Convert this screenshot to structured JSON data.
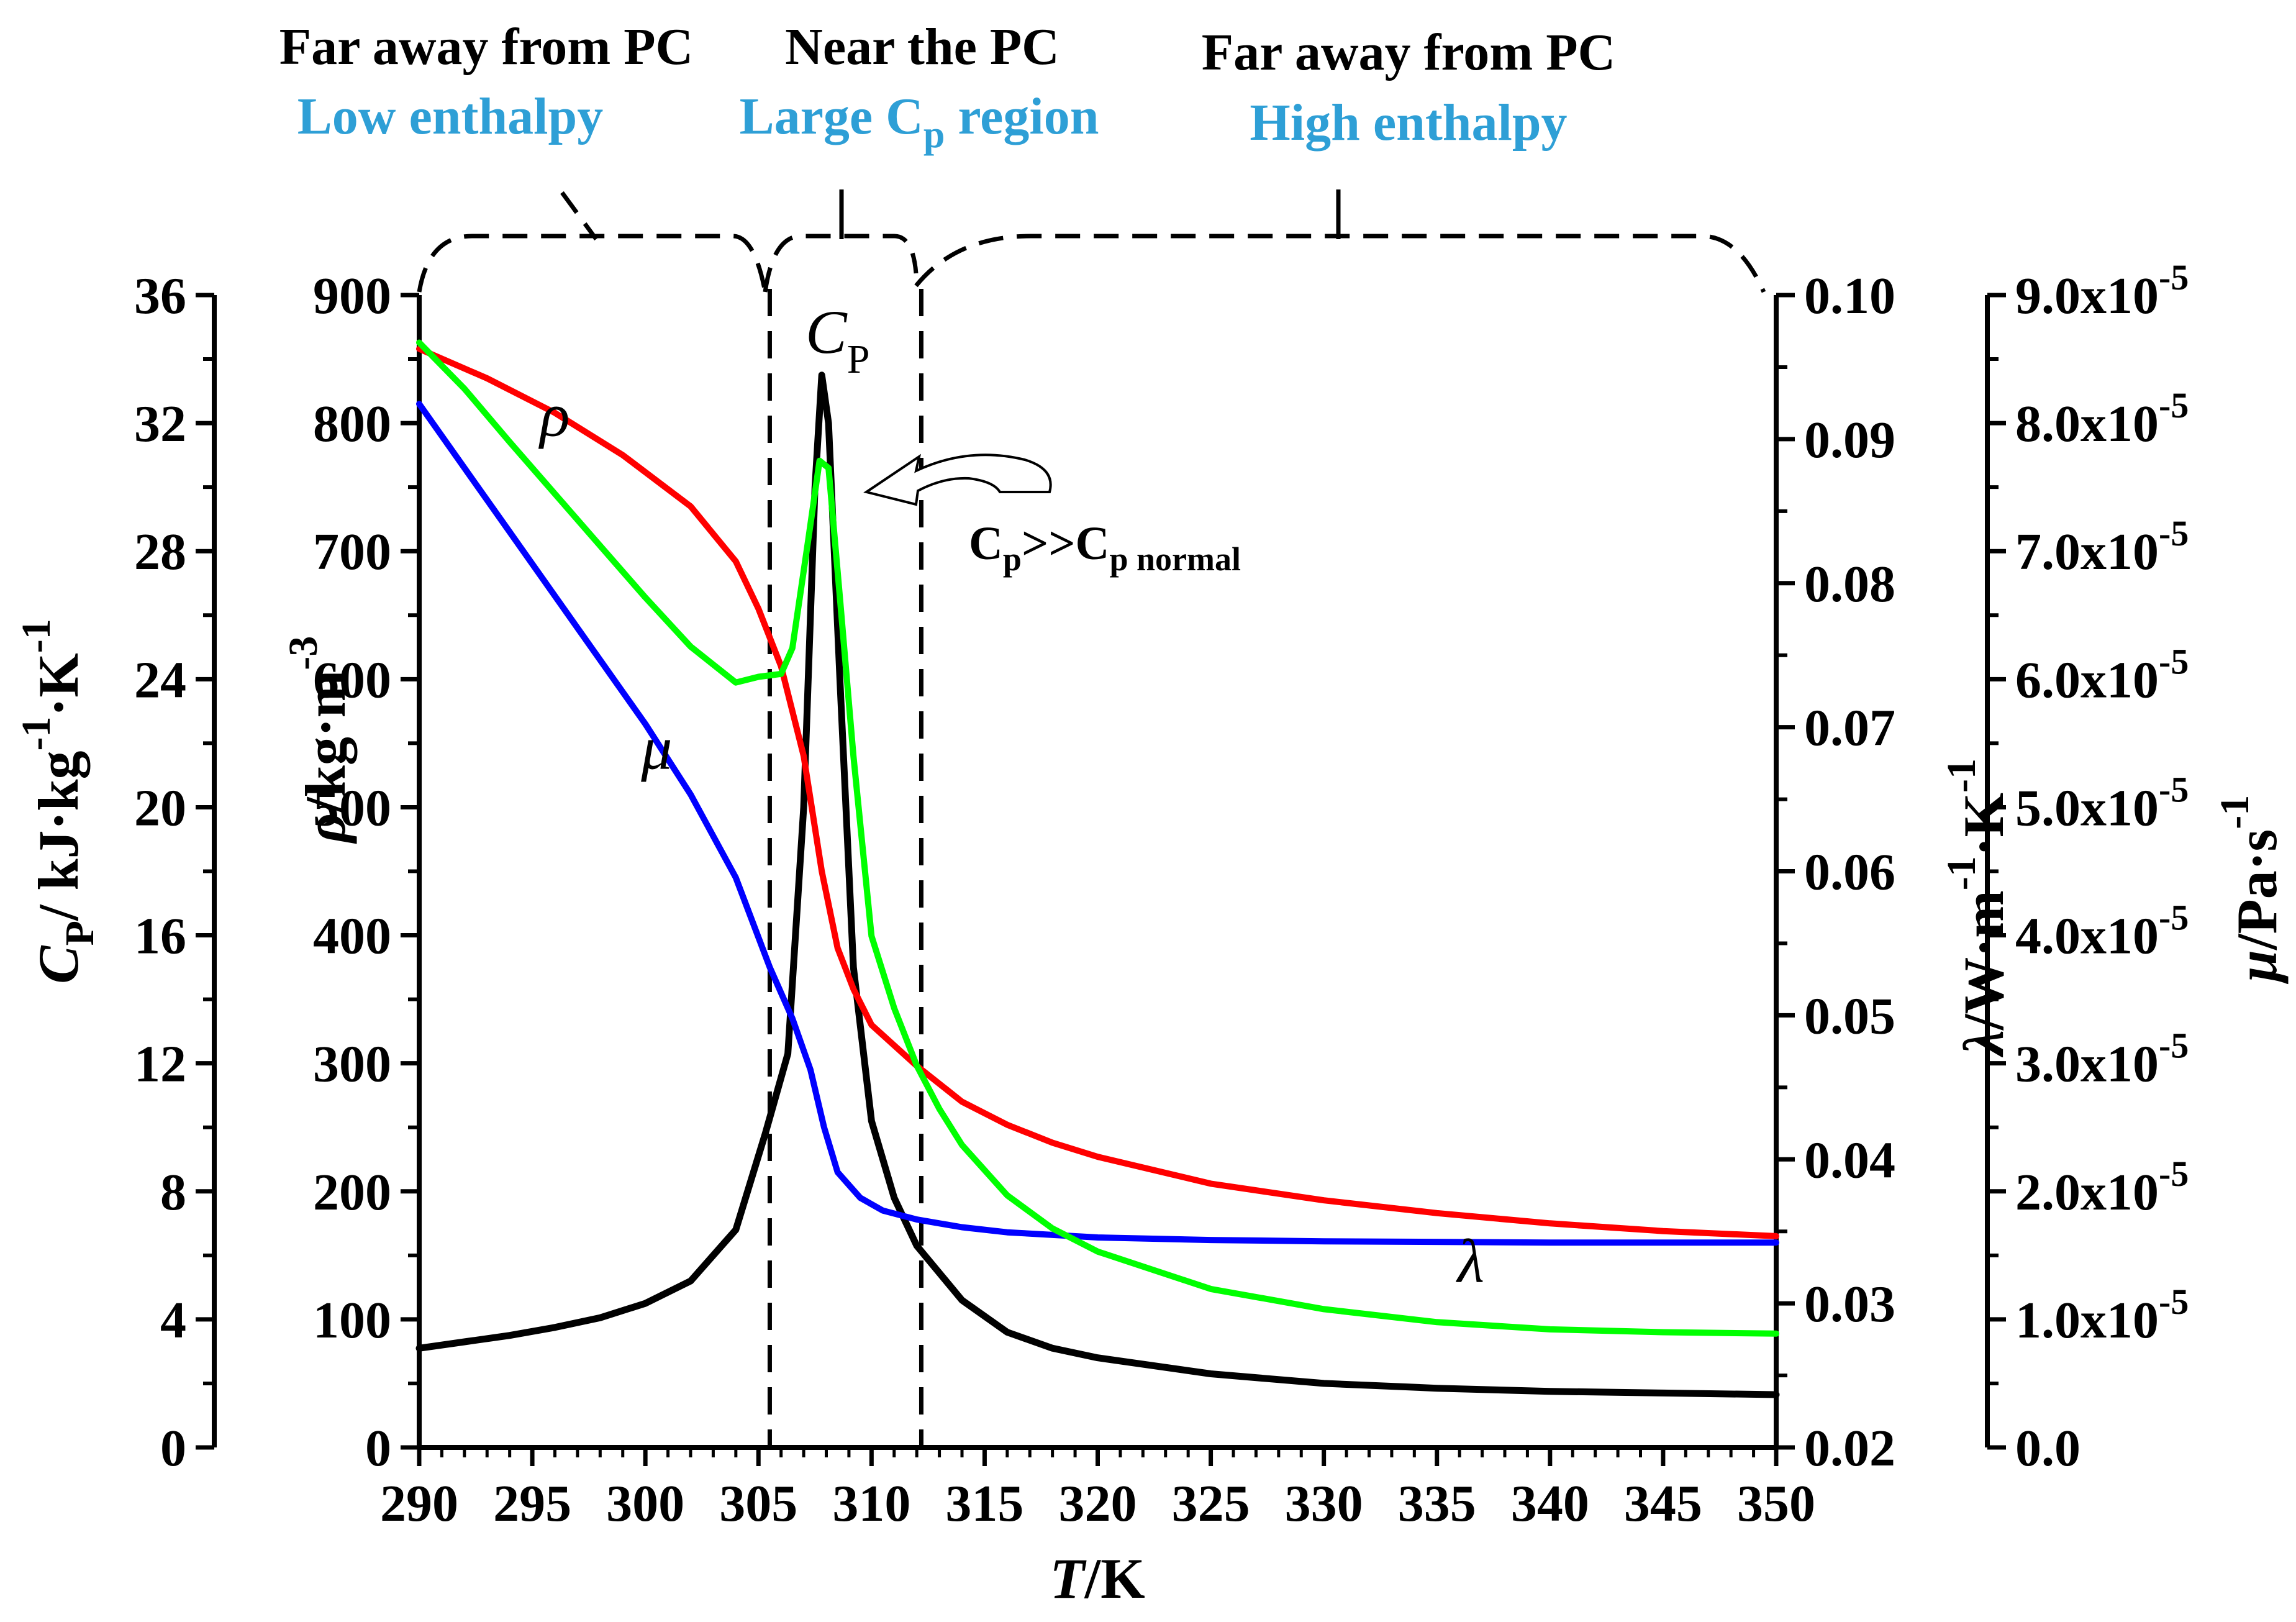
{
  "chart_data": {
    "type": "line",
    "xlabel": "T/K",
    "x_ticks": [
      290,
      295,
      300,
      305,
      310,
      315,
      320,
      325,
      330,
      335,
      340,
      345,
      350
    ],
    "xlim": [
      290,
      350
    ],
    "axes": {
      "cp": {
        "label": "C_P/ kJ·kg^-1·K^-1",
        "ylim": [
          0,
          36
        ],
        "ticks": [
          "0",
          "4",
          "8",
          "12",
          "16",
          "20",
          "24",
          "28",
          "32",
          "36"
        ]
      },
      "rho": {
        "label": "ρ/kg·m^-3",
        "ylim": [
          0,
          900
        ],
        "ticks": [
          "0",
          "100",
          "200",
          "300",
          "400",
          "500",
          "600",
          "700",
          "800",
          "900"
        ]
      },
      "lambda": {
        "label": "λ/W·m^-1·K^-1",
        "ylim": [
          0.02,
          0.1
        ],
        "ticks": [
          "0.02",
          "0.03",
          "0.04",
          "0.05",
          "0.06",
          "0.07",
          "0.08",
          "0.09",
          "0.10"
        ]
      },
      "mu": {
        "label": "μ/Pa·s^-1",
        "ylim": [
          0,
          9e-05
        ],
        "ticks": [
          "0.0",
          "1.0x10^-5",
          "2.0x10^-5",
          "3.0x10^-5",
          "4.0x10^-5",
          "5.0x10^-5",
          "6.0x10^-5",
          "7.0x10^-5",
          "8.0x10^-5",
          "9.0x10^-5"
        ]
      }
    },
    "series": [
      {
        "name": "C_P",
        "axis": "cp",
        "color": "#000000",
        "points": [
          [
            290,
            3.1
          ],
          [
            292,
            3.3
          ],
          [
            294,
            3.5
          ],
          [
            296,
            3.75
          ],
          [
            298,
            4.05
          ],
          [
            300,
            4.5
          ],
          [
            302,
            5.2
          ],
          [
            304,
            6.8
          ],
          [
            305.3,
            9.8
          ],
          [
            306.3,
            12.3
          ],
          [
            307,
            20
          ],
          [
            307.5,
            30
          ],
          [
            307.8,
            33.5
          ],
          [
            308.1,
            32
          ],
          [
            308.6,
            24
          ],
          [
            309.2,
            15
          ],
          [
            310,
            10.2
          ],
          [
            311,
            7.8
          ],
          [
            312,
            6.3
          ],
          [
            314,
            4.6
          ],
          [
            316,
            3.6
          ],
          [
            318,
            3.1
          ],
          [
            320,
            2.8
          ],
          [
            325,
            2.3
          ],
          [
            330,
            2.0
          ],
          [
            335,
            1.85
          ],
          [
            340,
            1.75
          ],
          [
            345,
            1.7
          ],
          [
            350,
            1.65
          ]
        ]
      },
      {
        "name": "ρ",
        "axis": "rho",
        "color": "#ff0000",
        "points": [
          [
            290,
            858
          ],
          [
            293,
            835
          ],
          [
            296,
            808
          ],
          [
            299,
            775
          ],
          [
            302,
            735
          ],
          [
            304,
            692
          ],
          [
            305,
            655
          ],
          [
            306,
            610
          ],
          [
            307,
            540
          ],
          [
            307.8,
            450
          ],
          [
            308.5,
            390
          ],
          [
            309.2,
            358
          ],
          [
            310,
            330
          ],
          [
            312,
            298
          ],
          [
            314,
            270
          ],
          [
            316,
            252
          ],
          [
            318,
            238
          ],
          [
            320,
            227
          ],
          [
            325,
            206
          ],
          [
            330,
            193
          ],
          [
            335,
            183
          ],
          [
            340,
            175
          ],
          [
            345,
            169
          ],
          [
            350,
            165
          ]
        ]
      },
      {
        "name": "μ",
        "axis": "mu",
        "color": "#0000ff",
        "points": [
          [
            290,
            8.15e-05
          ],
          [
            292,
            7.65e-05
          ],
          [
            294,
            7.15e-05
          ],
          [
            296,
            6.65e-05
          ],
          [
            298,
            6.15e-05
          ],
          [
            300,
            5.65e-05
          ],
          [
            302,
            5.1e-05
          ],
          [
            304,
            4.45e-05
          ],
          [
            305.5,
            3.75e-05
          ],
          [
            306.5,
            3.35e-05
          ],
          [
            307.3,
            2.95e-05
          ],
          [
            307.9,
            2.5e-05
          ],
          [
            308.5,
            2.15e-05
          ],
          [
            309.5,
            1.95e-05
          ],
          [
            310.5,
            1.85e-05
          ],
          [
            312,
            1.78e-05
          ],
          [
            314,
            1.72e-05
          ],
          [
            316,
            1.68e-05
          ],
          [
            320,
            1.64e-05
          ],
          [
            325,
            1.62e-05
          ],
          [
            330,
            1.61e-05
          ],
          [
            340,
            1.6e-05
          ],
          [
            350,
            1.6e-05
          ]
        ]
      },
      {
        "name": "λ",
        "axis": "lambda",
        "color": "#00ff00",
        "points": [
          [
            290,
            0.0967
          ],
          [
            292,
            0.0935
          ],
          [
            294,
            0.0898
          ],
          [
            296,
            0.0862
          ],
          [
            298,
            0.0826
          ],
          [
            300,
            0.079
          ],
          [
            302,
            0.0756
          ],
          [
            304,
            0.0731
          ],
          [
            305,
            0.0735
          ],
          [
            306,
            0.0737
          ],
          [
            306.5,
            0.0755
          ],
          [
            307.2,
            0.083
          ],
          [
            307.7,
            0.0885
          ],
          [
            308.1,
            0.088
          ],
          [
            308.6,
            0.079
          ],
          [
            309.2,
            0.068
          ],
          [
            310,
            0.0555
          ],
          [
            311,
            0.0505
          ],
          [
            312,
            0.0465
          ],
          [
            313,
            0.0435
          ],
          [
            314,
            0.041
          ],
          [
            316,
            0.0375
          ],
          [
            318,
            0.0352
          ],
          [
            320,
            0.0336
          ],
          [
            325,
            0.031
          ],
          [
            330,
            0.0296
          ],
          [
            335,
            0.0287
          ],
          [
            340,
            0.0282
          ],
          [
            345,
            0.028
          ],
          [
            350,
            0.0279
          ]
        ]
      }
    ],
    "curve_labels": [
      {
        "text": "ρ",
        "x": 296,
        "y": 790,
        "axis": "rho"
      },
      {
        "text": "μ",
        "x": 300.5,
        "y": 5.3e-05,
        "axis": "mu"
      },
      {
        "text": "λ",
        "x": 336.5,
        "y": 0.0315,
        "axis": "lambda"
      },
      {
        "text": "C",
        "sub": "P",
        "x": 308.5,
        "y": 34.2,
        "axis": "cp"
      }
    ],
    "dividers_T": [
      305.5,
      312.2
    ],
    "annotation": {
      "main": "C",
      "sub1": "p",
      "mid": ">>C",
      "sub2": "p normal"
    },
    "regions": [
      {
        "title": "Far away from PC",
        "subtitle": "Low enthalpy"
      },
      {
        "title": "Near the PC",
        "subtitle": "Large C",
        "subtitle_sub": "p",
        "subtitle_tail": " region"
      },
      {
        "title": "Far away from PC",
        "subtitle": "High enthalpy"
      }
    ]
  }
}
